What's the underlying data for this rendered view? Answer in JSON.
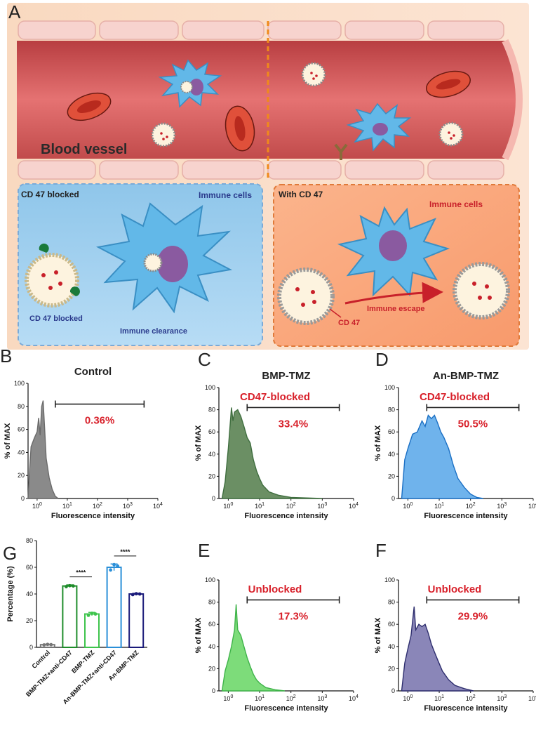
{
  "panel_a": {
    "letter": "A",
    "vessel_label": "Blood vessel",
    "left": {
      "title": "CD 47 blocked",
      "cells_label": "Immune cells",
      "particle_label": "CD 47 blocked",
      "clearance_label": "Immune clearance"
    },
    "right": {
      "title": "With CD 47",
      "cells_label": "Immune cells",
      "escape_label": "Immune escape",
      "cd47_label": "CD 47"
    },
    "colors": {
      "left_box": "#8ec3e8",
      "right_box": "#f6a97f",
      "vessel": "#d65a5a",
      "cell": "#5bb5e6",
      "accent": "#c8202a"
    }
  },
  "chart_data": [
    {
      "letter": "B",
      "type": "histogram",
      "title": "Control",
      "xlabel": "Fluorescence intensity",
      "ylabel": "% of MAX",
      "annotation": "",
      "gate_label": "0.36%",
      "gate_range": [
        4,
        3500
      ],
      "color": "#6b6b6b",
      "fill": "#8a8a8a",
      "ylim": [
        0,
        100
      ],
      "yticks": [
        0,
        20,
        40,
        60,
        80,
        100
      ],
      "xticks": [
        "10^0",
        "10^1",
        "10^2",
        "10^3",
        "10^4"
      ],
      "xlim_log10": [
        -0.3,
        4
      ],
      "curve_log10": [
        [
          -0.3,
          0
        ],
        [
          -0.25,
          25
        ],
        [
          -0.2,
          45
        ],
        [
          -0.1,
          52
        ],
        [
          0,
          58
        ],
        [
          0.05,
          70
        ],
        [
          0.1,
          55
        ],
        [
          0.15,
          80
        ],
        [
          0.2,
          85
        ],
        [
          0.25,
          60
        ],
        [
          0.3,
          35
        ],
        [
          0.4,
          18
        ],
        [
          0.5,
          8
        ],
        [
          0.6,
          2
        ],
        [
          0.7,
          0
        ]
      ]
    },
    {
      "letter": "C",
      "type": "histogram",
      "title": "BMP-TMZ",
      "xlabel": "Fluorescence intensity",
      "ylabel": "% of MAX",
      "annotation": "CD47-blocked",
      "gate_label": "33.4%",
      "gate_range": [
        4,
        3500
      ],
      "color": "#3f6e3f",
      "fill": "#6b8f64",
      "ylim": [
        0,
        100
      ],
      "yticks": [
        0,
        20,
        40,
        60,
        80,
        100
      ],
      "xticks": [
        "10^0",
        "10^1",
        "10^2",
        "10^3",
        "10^4"
      ],
      "xlim_log10": [
        -0.3,
        4
      ],
      "curve_log10": [
        [
          -0.2,
          0
        ],
        [
          -0.1,
          15
        ],
        [
          0,
          45
        ],
        [
          0.1,
          82
        ],
        [
          0.15,
          70
        ],
        [
          0.2,
          78
        ],
        [
          0.3,
          80
        ],
        [
          0.4,
          74
        ],
        [
          0.5,
          65
        ],
        [
          0.6,
          55
        ],
        [
          0.7,
          50
        ],
        [
          0.8,
          35
        ],
        [
          0.9,
          25
        ],
        [
          1.0,
          18
        ],
        [
          1.1,
          12
        ],
        [
          1.3,
          6
        ],
        [
          1.6,
          3
        ],
        [
          2.0,
          1
        ],
        [
          2.5,
          0.5
        ],
        [
          3.0,
          0
        ]
      ]
    },
    {
      "letter": "D",
      "type": "histogram",
      "title": "An-BMP-TMZ",
      "xlabel": "Fluorescence intensity",
      "ylabel": "% of MAX",
      "annotation": "CD47-blocked",
      "gate_label": "50.5%",
      "gate_range": [
        4,
        3500
      ],
      "color": "#1a6fc4",
      "fill": "#6fb3ec",
      "ylim": [
        0,
        100
      ],
      "yticks": [
        0,
        20,
        40,
        60,
        80,
        100
      ],
      "xticks": [
        "10^0",
        "10^1",
        "10^2",
        "10^3",
        "10^4"
      ],
      "xlim_log10": [
        -0.3,
        4
      ],
      "curve_log10": [
        [
          -0.2,
          0
        ],
        [
          -0.1,
          35
        ],
        [
          0,
          45
        ],
        [
          0.15,
          58
        ],
        [
          0.3,
          60
        ],
        [
          0.45,
          70
        ],
        [
          0.55,
          65
        ],
        [
          0.65,
          75
        ],
        [
          0.75,
          72
        ],
        [
          0.85,
          75
        ],
        [
          0.95,
          68
        ],
        [
          1.05,
          60
        ],
        [
          1.15,
          55
        ],
        [
          1.3,
          45
        ],
        [
          1.45,
          30
        ],
        [
          1.6,
          18
        ],
        [
          1.8,
          10
        ],
        [
          2.0,
          4
        ],
        [
          2.2,
          1
        ],
        [
          2.4,
          0
        ]
      ]
    },
    {
      "letter": "E",
      "type": "histogram",
      "title": "",
      "xlabel": "Fluorescence intensity",
      "ylabel": "% of MAX",
      "annotation": "Unblocked",
      "gate_label": "17.3%",
      "gate_range": [
        4,
        3500
      ],
      "color": "#3fb34a",
      "fill": "#7ddc7a",
      "ylim": [
        0,
        100
      ],
      "yticks": [
        0,
        20,
        40,
        60,
        80,
        100
      ],
      "xticks": [
        "10^0",
        "10^1",
        "10^2",
        "10^3",
        "10^4"
      ],
      "xlim_log10": [
        -0.3,
        4
      ],
      "curve_log10": [
        [
          -0.2,
          0
        ],
        [
          -0.1,
          18
        ],
        [
          0,
          28
        ],
        [
          0.1,
          40
        ],
        [
          0.2,
          55
        ],
        [
          0.25,
          78
        ],
        [
          0.3,
          55
        ],
        [
          0.4,
          50
        ],
        [
          0.5,
          40
        ],
        [
          0.6,
          30
        ],
        [
          0.7,
          22
        ],
        [
          0.8,
          15
        ],
        [
          0.9,
          10
        ],
        [
          1.0,
          7
        ],
        [
          1.2,
          3
        ],
        [
          1.5,
          1
        ],
        [
          1.8,
          0
        ]
      ]
    },
    {
      "letter": "F",
      "type": "histogram",
      "title": "",
      "xlabel": "Fluorescence intensity",
      "ylabel": "% of MAX",
      "annotation": "Unblocked",
      "gate_label": "29.9%",
      "gate_range": [
        4,
        3500
      ],
      "color": "#2e2e6e",
      "fill": "#8a86b8",
      "ylim": [
        0,
        100
      ],
      "yticks": [
        0,
        20,
        40,
        60,
        80,
        100
      ],
      "xticks": [
        "10^0",
        "10^1",
        "10^2",
        "10^3",
        "10^4"
      ],
      "xlim_log10": [
        -0.3,
        4
      ],
      "curve_log10": [
        [
          -0.2,
          0
        ],
        [
          -0.1,
          25
        ],
        [
          0,
          38
        ],
        [
          0.1,
          50
        ],
        [
          0.2,
          76
        ],
        [
          0.25,
          55
        ],
        [
          0.35,
          60
        ],
        [
          0.45,
          58
        ],
        [
          0.55,
          60
        ],
        [
          0.65,
          52
        ],
        [
          0.75,
          42
        ],
        [
          0.85,
          35
        ],
        [
          0.95,
          28
        ],
        [
          1.1,
          18
        ],
        [
          1.3,
          10
        ],
        [
          1.5,
          5
        ],
        [
          1.8,
          2
        ],
        [
          2.1,
          0
        ]
      ]
    },
    {
      "letter": "G",
      "type": "bar",
      "title": "",
      "xlabel": "",
      "ylabel": "Percentage (%)",
      "ylim": [
        0,
        80
      ],
      "yticks": [
        0,
        20,
        40,
        60,
        80
      ],
      "categories": [
        "Control",
        "BMP-TMZ+anti-CD47",
        "BMP-TMZ",
        "An-BMP-TMZ+anti-CD47",
        "An-BMP-TMZ"
      ],
      "values": [
        2,
        46,
        25,
        60,
        40
      ],
      "errors": [
        0.4,
        0.8,
        1.2,
        2.5,
        0.5
      ],
      "points": [
        [
          1.8,
          2.2,
          2.0
        ],
        [
          45.5,
          46.2,
          46.0
        ],
        [
          24,
          25.5,
          25
        ],
        [
          58,
          62,
          61
        ],
        [
          39.5,
          40.2,
          40
        ]
      ],
      "colors": [
        "#777777",
        "#1e8c2a",
        "#3ec44c",
        "#2a8fd8",
        "#1a1a7a"
      ],
      "significance": [
        {
          "from": 1,
          "to": 2,
          "label": "****"
        },
        {
          "from": 3,
          "to": 4,
          "label": "****"
        }
      ]
    }
  ]
}
